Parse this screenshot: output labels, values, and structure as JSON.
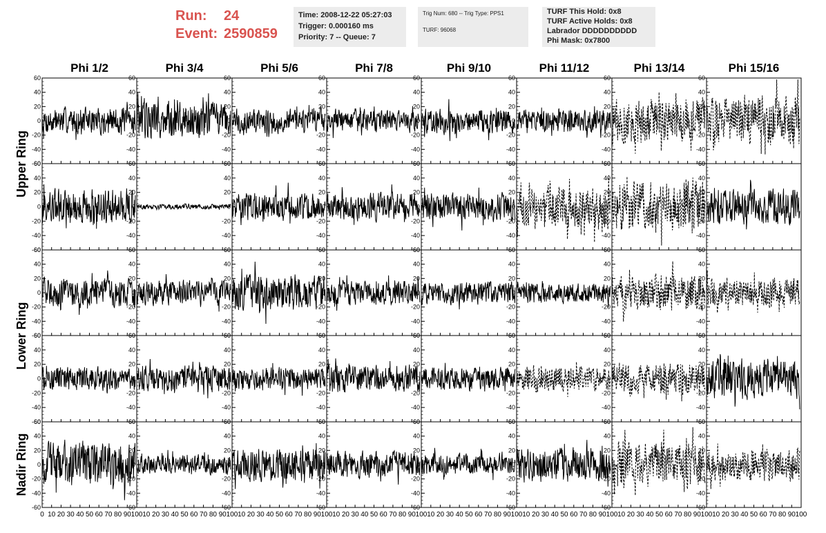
{
  "header": {
    "run_label": "Run:",
    "run_value": "24",
    "event_label": "Event:",
    "event_value": "2590859"
  },
  "info_time": {
    "time": "Time: 2008-12-22 05:27:03",
    "trigger": "Trigger: 0.000160 ms",
    "priority": "Priority: 7 -- Queue: 7"
  },
  "info_trig": {
    "trig": "Trig Num: 680 -- Trig Type: PPS1",
    "turf": "TURF: 96068"
  },
  "info_turf": {
    "hold": "TURF This Hold: 0x8",
    "active": "TURF Active Holds: 0x8",
    "labrador": "Labrador DDDDDDDDDD",
    "phimask": "Phi Mask: 0x7800"
  },
  "chart_data": {
    "type": "line",
    "columns": [
      "Phi 1/2",
      "Phi 3/4",
      "Phi 5/6",
      "Phi 7/8",
      "Phi 9/10",
      "Phi 11/12",
      "Phi 13/14",
      "Phi 15/16"
    ],
    "ring_labels": [
      {
        "text": "Upper Ring",
        "rows": [
          0,
          1
        ]
      },
      {
        "text": "Lower Ring",
        "rows": [
          2,
          3
        ]
      },
      {
        "text": "Nadir Ring",
        "rows": [
          4
        ]
      }
    ],
    "xlim": [
      0,
      100
    ],
    "ylim": [
      -60,
      60
    ],
    "x_ticks": [
      "0",
      "10",
      "20",
      "30",
      "40",
      "50",
      "60",
      "70",
      "80",
      "90",
      "100"
    ],
    "y_ticks": [
      "-60",
      "-40",
      "-20",
      "0",
      "20",
      "40",
      "60"
    ],
    "dashed_panels": [
      [
        0,
        6
      ],
      [
        0,
        7
      ],
      [
        1,
        5
      ],
      [
        1,
        6
      ],
      [
        2,
        6
      ],
      [
        2,
        7
      ],
      [
        3,
        5
      ],
      [
        3,
        6
      ],
      [
        4,
        6
      ],
      [
        4,
        7
      ]
    ],
    "panel_amplitudes": [
      [
        16,
        24,
        15,
        14,
        16,
        14,
        28,
        30
      ],
      [
        22,
        3,
        17,
        17,
        17,
        27,
        31,
        22
      ],
      [
        18,
        15,
        22,
        15,
        14,
        13,
        22,
        18
      ],
      [
        14,
        16,
        14,
        17,
        14,
        16,
        20,
        24
      ],
      [
        28,
        12,
        21,
        17,
        13,
        21,
        28,
        20
      ]
    ],
    "samples_per_trace": 260
  }
}
